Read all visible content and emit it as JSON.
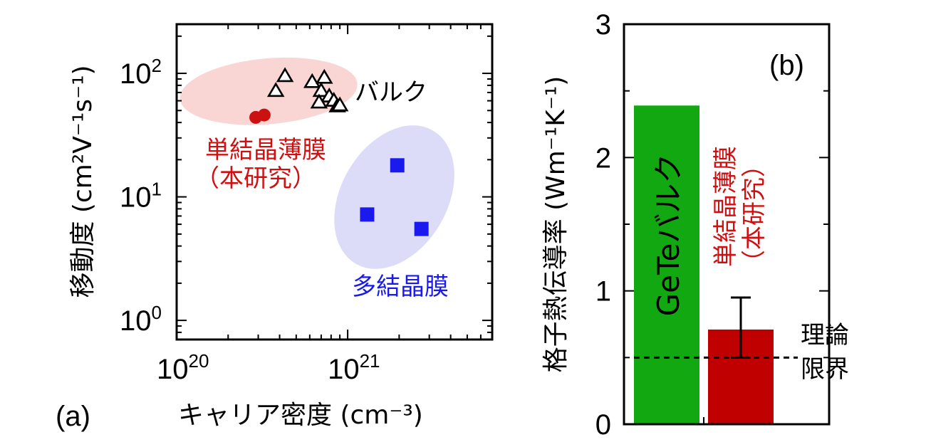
{
  "chart_data": [
    {
      "type": "scatter",
      "panel_label": "(a)",
      "xlabel": "キャリア密度 (cm⁻³)",
      "ylabel": "移動度 (cm²V⁻¹s⁻¹)",
      "x_scale": "log",
      "y_scale": "log",
      "xlim": [
        1e+20,
        7e+21
      ],
      "ylim": [
        0.7,
        250
      ],
      "x_ticks": [
        {
          "value": 1e+20,
          "base": "10",
          "exp": "20"
        },
        {
          "value": 1e+21,
          "base": "10",
          "exp": "21"
        }
      ],
      "y_ticks": [
        {
          "value": 1,
          "base": "10",
          "exp": "0"
        },
        {
          "value": 10,
          "base": "10",
          "exp": "1"
        },
        {
          "value": 100,
          "base": "10",
          "exp": "2"
        }
      ],
      "series": [
        {
          "name": "バルク",
          "marker": "triangle-open",
          "color": "#000000",
          "region_color": "#f9d6d3",
          "points": [
            [
              4.3e+20,
              95
            ],
            [
              3.8e+20,
              72
            ],
            [
              6.2e+20,
              85
            ],
            [
              7.3e+20,
              92
            ],
            [
              7e+20,
              72
            ],
            [
              7.8e+20,
              65
            ],
            [
              6.8e+20,
              58
            ],
            [
              8.3e+20,
              60
            ],
            [
              8.7e+20,
              54
            ],
            [
              9e+20,
              55
            ]
          ]
        },
        {
          "name": "単結晶薄膜",
          "name_line2": "（本研究）",
          "marker": "circle-filled",
          "color": "#cc1111",
          "points": [
            [
              2.9e+20,
              44
            ],
            [
              3.25e+20,
              46
            ]
          ]
        },
        {
          "name": "多結晶膜",
          "marker": "square-filled",
          "color": "#1a1aee",
          "region_color": "#dcdcf8",
          "points": [
            [
              1.95e+21,
              18
            ],
            [
              1.3e+21,
              7.2
            ],
            [
              2.7e+21,
              5.5
            ]
          ]
        }
      ]
    },
    {
      "type": "bar",
      "panel_label": "(b)",
      "ylabel": "格子熱伝導率 (Wm⁻¹K⁻¹)",
      "ylim": [
        0,
        3
      ],
      "y_ticks": [
        0,
        1,
        2,
        3
      ],
      "categories": [
        "GeTeバルク",
        "単結晶薄膜（本研究）"
      ],
      "values": [
        2.39,
        0.71
      ],
      "error_bar_upper": [
        null,
        0.95
      ],
      "error_bar_lower": [
        null,
        0.5
      ],
      "colors": [
        "#12a812",
        "#c00000"
      ],
      "bar_label_line1": [
        "GeTeバルク",
        "単結晶薄膜"
      ],
      "bar_label_line2": [
        "",
        "（本研究）"
      ],
      "reference_line": {
        "value": 0.5,
        "label_line1": "理論",
        "label_line2": "限界"
      }
    }
  ]
}
